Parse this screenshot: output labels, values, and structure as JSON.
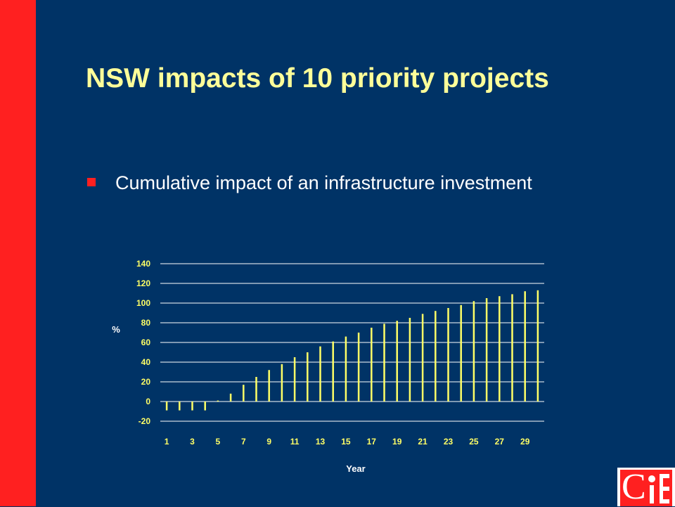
{
  "slide": {
    "title": "NSW impacts of 10 priority projects",
    "bullet": "Cumulative impact of an infrastructure investment"
  },
  "colors": {
    "background": "#003366",
    "accent": "#ff2020",
    "title": "#ffff99",
    "bars": "#ffff66"
  },
  "chart_data": {
    "type": "bar",
    "xlabel": "Year",
    "ylabel": "%",
    "ylim": [
      -20,
      140
    ],
    "yticks": [
      140,
      120,
      100,
      80,
      60,
      40,
      20,
      0,
      -20
    ],
    "grid": true,
    "categories": [
      1,
      2,
      3,
      4,
      5,
      6,
      7,
      8,
      9,
      10,
      11,
      12,
      13,
      14,
      15,
      16,
      17,
      18,
      19,
      20,
      21,
      22,
      23,
      24,
      25,
      26,
      27,
      28,
      29,
      30
    ],
    "xtick_labels": [
      "1",
      "3",
      "5",
      "7",
      "9",
      "11",
      "13",
      "15",
      "17",
      "19",
      "21",
      "23",
      "25",
      "27",
      "29"
    ],
    "values": [
      -9,
      -9,
      -9,
      -9,
      1,
      8,
      17,
      25,
      32,
      38,
      45,
      50,
      56,
      61,
      66,
      70,
      75,
      79,
      82,
      85,
      89,
      92,
      95,
      98,
      102,
      105,
      107,
      109,
      112,
      113
    ]
  },
  "logo": {
    "text": "CIE"
  }
}
